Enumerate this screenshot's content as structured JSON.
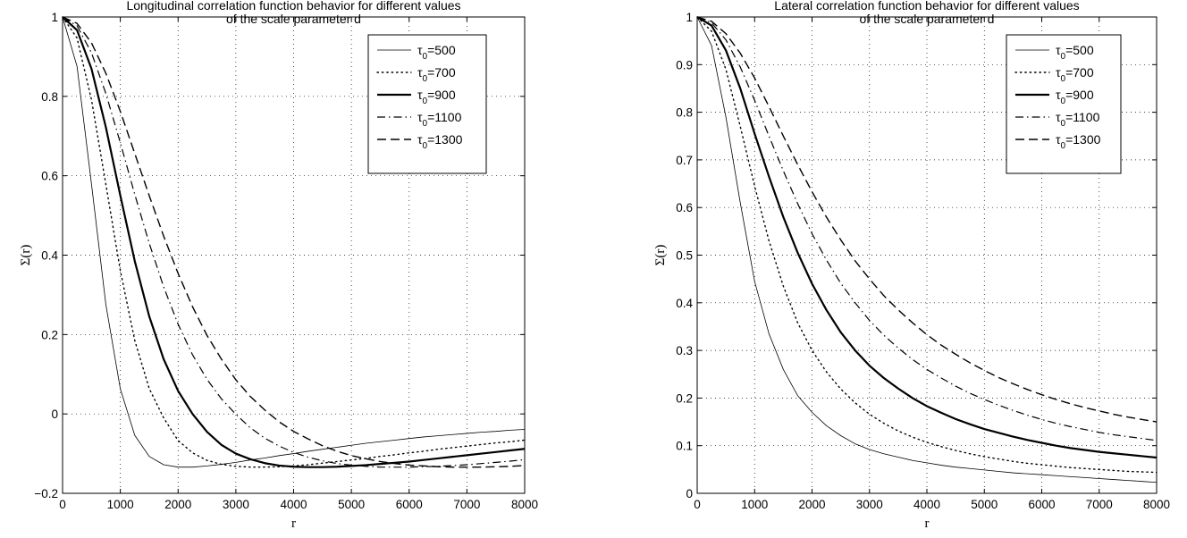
{
  "chart_data": [
    {
      "type": "line",
      "title": "Longitudinal correlation function behavior for different values of the scale parameter d",
      "title_lines": [
        "Longitudinal correlation function behavior for different values",
        "of the scale parameter d"
      ],
      "xlabel": "r",
      "ylabel": "Σ(r)",
      "xlim": [
        0,
        8000
      ],
      "ylim": [
        -0.2,
        1
      ],
      "xticks": [
        0,
        1000,
        2000,
        3000,
        4000,
        5000,
        6000,
        7000,
        8000
      ],
      "xtick_labels": [
        "0",
        "1000",
        "2000",
        "3000",
        "4000",
        "5000",
        "6000",
        "7000",
        "8000"
      ],
      "yticks": [
        -0.2,
        0,
        0.2,
        0.4,
        0.6,
        0.8,
        1
      ],
      "ytick_labels": [
        "−0.2",
        "0",
        "0.2",
        "0.4",
        "0.6",
        "0.8",
        "1"
      ],
      "grid": true,
      "legend_position": "top-right",
      "x": [
        0,
        250,
        500,
        750,
        1000,
        1250,
        1500,
        1750,
        2000,
        2250,
        2500,
        2750,
        3000,
        3250,
        3500,
        3750,
        4000,
        4250,
        4500,
        4750,
        5000,
        5250,
        5500,
        5750,
        6000,
        6250,
        6500,
        6750,
        7000,
        7250,
        7500,
        7750,
        8000
      ],
      "series": [
        {
          "name": "τ0=500",
          "legend_main": "τ",
          "legend_sub": "0",
          "legend_tail": "=500",
          "style": "thin",
          "values": [
            1.0,
            0.876,
            0.58,
            0.275,
            0.063,
            -0.054,
            -0.107,
            -0.128,
            -0.134,
            -0.134,
            -0.131,
            -0.127,
            -0.122,
            -0.116,
            -0.111,
            -0.105,
            -0.1,
            -0.094,
            -0.089,
            -0.084,
            -0.079,
            -0.074,
            -0.07,
            -0.066,
            -0.062,
            -0.058,
            -0.055,
            -0.052,
            -0.049,
            -0.046,
            -0.044,
            -0.041,
            -0.039
          ]
        },
        {
          "name": "τ0=700",
          "legend_main": "τ",
          "legend_sub": "0",
          "legend_tail": "=700",
          "style": "dotted",
          "values": [
            1.0,
            0.947,
            0.792,
            0.578,
            0.361,
            0.185,
            0.064,
            -0.01,
            -0.067,
            -0.098,
            -0.117,
            -0.127,
            -0.132,
            -0.134,
            -0.134,
            -0.133,
            -0.131,
            -0.128,
            -0.124,
            -0.12,
            -0.116,
            -0.112,
            -0.107,
            -0.103,
            -0.098,
            -0.094,
            -0.089,
            -0.085,
            -0.081,
            -0.077,
            -0.073,
            -0.07,
            -0.066
          ]
        },
        {
          "name": "τ0=900",
          "legend_main": "τ",
          "legend_sub": "0",
          "legend_tail": "=900",
          "style": "thick",
          "values": [
            1.0,
            0.967,
            0.87,
            0.722,
            0.55,
            0.385,
            0.246,
            0.138,
            0.058,
            0.0,
            -0.045,
            -0.078,
            -0.1,
            -0.114,
            -0.124,
            -0.13,
            -0.133,
            -0.134,
            -0.134,
            -0.133,
            -0.131,
            -0.129,
            -0.126,
            -0.123,
            -0.12,
            -0.116,
            -0.112,
            -0.108,
            -0.104,
            -0.1,
            -0.096,
            -0.092,
            -0.088
          ]
        },
        {
          "name": "τ0=1100",
          "legend_main": "τ",
          "legend_sub": "0",
          "legend_tail": "=1100",
          "style": "dashdot",
          "values": [
            1.0,
            0.978,
            0.91,
            0.807,
            0.683,
            0.553,
            0.43,
            0.32,
            0.226,
            0.149,
            0.087,
            0.038,
            -0.001,
            -0.035,
            -0.061,
            -0.081,
            -0.097,
            -0.109,
            -0.118,
            -0.125,
            -0.129,
            -0.132,
            -0.134,
            -0.134,
            -0.134,
            -0.133,
            -0.132,
            -0.13,
            -0.128,
            -0.125,
            -0.122,
            -0.119,
            -0.115
          ]
        },
        {
          "name": "τ0=1300",
          "legend_main": "τ",
          "legend_sub": "0",
          "legend_tail": "=1300",
          "style": "dashed",
          "values": [
            1.0,
            0.984,
            0.935,
            0.858,
            0.762,
            0.656,
            0.55,
            0.448,
            0.354,
            0.27,
            0.198,
            0.138,
            0.086,
            0.044,
            0.01,
            -0.02,
            -0.044,
            -0.063,
            -0.08,
            -0.094,
            -0.105,
            -0.113,
            -0.12,
            -0.125,
            -0.129,
            -0.131,
            -0.133,
            -0.134,
            -0.134,
            -0.134,
            -0.133,
            -0.132,
            -0.13
          ]
        }
      ]
    },
    {
      "type": "line",
      "title": "Lateral correlation function behavior for different values of the scale parameter d",
      "title_lines": [
        "Lateral correlation function behavior for different values",
        "of the scale parameter d"
      ],
      "xlabel": "r",
      "ylabel": "Σ(r)",
      "xlim": [
        0,
        8000
      ],
      "ylim": [
        0,
        1
      ],
      "xticks": [
        0,
        1000,
        2000,
        3000,
        4000,
        5000,
        6000,
        7000,
        8000
      ],
      "xtick_labels": [
        "0",
        "1000",
        "2000",
        "3000",
        "4000",
        "5000",
        "6000",
        "7000",
        "8000"
      ],
      "yticks": [
        0,
        0.1,
        0.2,
        0.3,
        0.4,
        0.5,
        0.6,
        0.7,
        0.8,
        0.9,
        1
      ],
      "ytick_labels": [
        "0",
        "0.1",
        "0.2",
        "0.3",
        "0.4",
        "0.5",
        "0.6",
        "0.7",
        "0.8",
        "0.9",
        "1"
      ],
      "grid": true,
      "legend_position": "top-right",
      "x": [
        0,
        250,
        500,
        750,
        1000,
        1250,
        1500,
        1750,
        2000,
        2250,
        2500,
        2750,
        3000,
        3250,
        3500,
        3750,
        4000,
        4250,
        4500,
        4750,
        5000,
        5250,
        5500,
        5750,
        6000,
        6250,
        6500,
        6750,
        7000,
        7250,
        7500,
        7750,
        8000
      ],
      "series": [
        {
          "name": "τ0=500",
          "legend_main": "τ",
          "legend_sub": "0",
          "legend_tail": "=500",
          "style": "thin",
          "values": [
            1.0,
            0.94,
            0.79,
            0.61,
            0.445,
            0.335,
            0.26,
            0.205,
            0.17,
            0.142,
            0.121,
            0.104,
            0.092,
            0.083,
            0.076,
            0.069,
            0.064,
            0.059,
            0.055,
            0.052,
            0.049,
            0.046,
            0.043,
            0.041,
            0.039,
            0.037,
            0.035,
            0.033,
            0.031,
            0.029,
            0.027,
            0.025,
            0.023
          ]
        },
        {
          "name": "τ0=700",
          "legend_main": "τ",
          "legend_sub": "0",
          "legend_tail": "=700",
          "style": "dotted",
          "values": [
            1.0,
            0.97,
            0.89,
            0.77,
            0.645,
            0.53,
            0.435,
            0.358,
            0.3,
            0.255,
            0.219,
            0.19,
            0.166,
            0.147,
            0.131,
            0.118,
            0.107,
            0.098,
            0.09,
            0.083,
            0.077,
            0.072,
            0.067,
            0.063,
            0.06,
            0.057,
            0.054,
            0.052,
            0.05,
            0.048,
            0.046,
            0.045,
            0.044
          ]
        },
        {
          "name": "τ0=900",
          "legend_main": "τ",
          "legend_sub": "0",
          "legend_tail": "=900",
          "style": "thick",
          "values": [
            1.0,
            0.982,
            0.93,
            0.85,
            0.755,
            0.665,
            0.58,
            0.505,
            0.44,
            0.385,
            0.338,
            0.3,
            0.268,
            0.242,
            0.22,
            0.2,
            0.183,
            0.169,
            0.156,
            0.145,
            0.135,
            0.127,
            0.119,
            0.112,
            0.106,
            0.1,
            0.095,
            0.091,
            0.087,
            0.084,
            0.081,
            0.078,
            0.075
          ]
        },
        {
          "name": "τ0=1100",
          "legend_main": "τ",
          "legend_sub": "0",
          "legend_tail": "=1100",
          "style": "dashdot",
          "values": [
            1.0,
            0.988,
            0.952,
            0.895,
            0.825,
            0.75,
            0.677,
            0.608,
            0.545,
            0.49,
            0.441,
            0.4,
            0.363,
            0.332,
            0.305,
            0.281,
            0.26,
            0.242,
            0.225,
            0.21,
            0.197,
            0.185,
            0.174,
            0.164,
            0.155,
            0.147,
            0.14,
            0.134,
            0.128,
            0.123,
            0.119,
            0.115,
            0.111
          ]
        },
        {
          "name": "τ0=1300",
          "legend_main": "τ",
          "legend_sub": "0",
          "legend_tail": "=1300",
          "style": "dashed",
          "values": [
            1.0,
            0.991,
            0.965,
            0.924,
            0.872,
            0.812,
            0.75,
            0.69,
            0.633,
            0.58,
            0.532,
            0.488,
            0.45,
            0.415,
            0.385,
            0.358,
            0.333,
            0.311,
            0.292,
            0.274,
            0.258,
            0.243,
            0.23,
            0.218,
            0.207,
            0.197,
            0.188,
            0.18,
            0.173,
            0.166,
            0.16,
            0.155,
            0.15
          ]
        }
      ]
    }
  ]
}
